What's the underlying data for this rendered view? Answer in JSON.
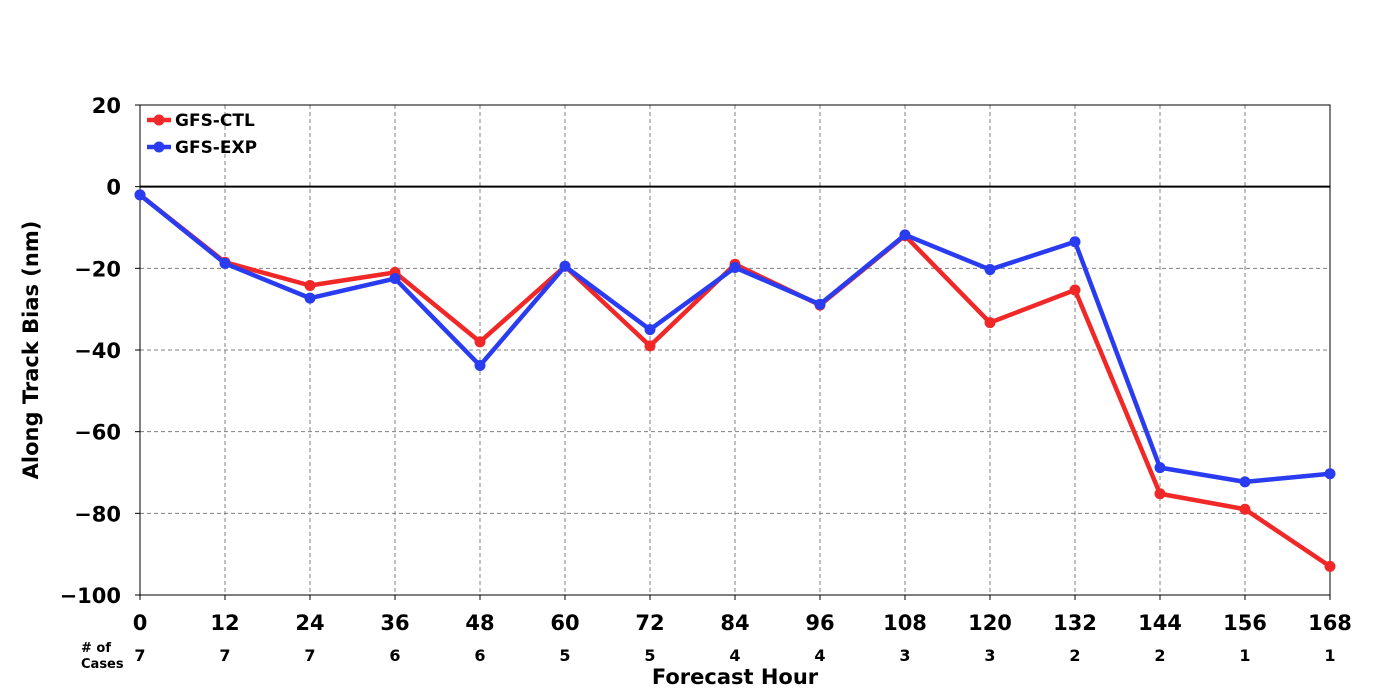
{
  "chart_data": {
    "type": "line",
    "xlabel": "Forecast Hour",
    "ylabel": "Along Track Bias (nm)",
    "x": [
      0,
      12,
      24,
      36,
      48,
      60,
      72,
      84,
      96,
      108,
      120,
      132,
      144,
      156,
      168
    ],
    "xlim": [
      0,
      168
    ],
    "ylim": [
      -100,
      20
    ],
    "yticks": [
      20,
      0,
      -20,
      -40,
      -60,
      -80,
      -100
    ],
    "ytick_labels": [
      "20",
      "0",
      "−20",
      "−40",
      "−60",
      "−80",
      "−100"
    ],
    "xtick_labels": [
      "0",
      "12",
      "24",
      "36",
      "48",
      "60",
      "72",
      "84",
      "96",
      "108",
      "120",
      "132",
      "144",
      "156",
      "168"
    ],
    "grid": true,
    "zero_line": true,
    "legend_position": "top-left",
    "cases_label_line1": "# of",
    "cases_label_line2": "Cases",
    "cases": [
      "7",
      "7",
      "7",
      "6",
      "6",
      "5",
      "5",
      "4",
      "4",
      "3",
      "3",
      "2",
      "2",
      "1",
      "1"
    ],
    "series": [
      {
        "name": "GFS-CTL",
        "color": "#f02828",
        "values": [
          -2,
          -18.5,
          -24.2,
          -21,
          -38,
          -19.5,
          -39,
          -19,
          -29,
          -12,
          -33.3,
          -25.3,
          -75.2,
          -79,
          -93
        ]
      },
      {
        "name": "GFS-EXP",
        "color": "#2a3cf0",
        "values": [
          -2,
          -18.8,
          -27.3,
          -22.5,
          -43.8,
          -19.5,
          -35,
          -19.8,
          -28.8,
          -11.8,
          -20.3,
          -13.5,
          -68.8,
          -72.3,
          -70.3
        ]
      }
    ]
  }
}
